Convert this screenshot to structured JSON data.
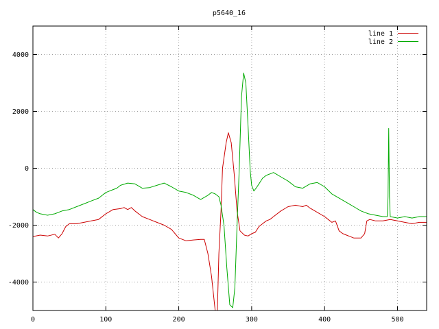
{
  "chart_data": {
    "type": "line",
    "title": "p5640_16",
    "xlabel": "",
    "ylabel": "",
    "xlim": [
      0,
      540
    ],
    "ylim": [
      -5000,
      5000
    ],
    "xticks": [
      0,
      100,
      200,
      300,
      400,
      500
    ],
    "yticks": [
      -4000,
      -2000,
      0,
      2000,
      4000
    ],
    "grid": true,
    "legend_position": "top-right",
    "series": [
      {
        "name": "line 1",
        "color": "#cc0000",
        "points": [
          [
            0,
            -2400
          ],
          [
            10,
            -2350
          ],
          [
            20,
            -2380
          ],
          [
            30,
            -2320
          ],
          [
            35,
            -2450
          ],
          [
            40,
            -2300
          ],
          [
            45,
            -2050
          ],
          [
            50,
            -1950
          ],
          [
            60,
            -1950
          ],
          [
            70,
            -1900
          ],
          [
            80,
            -1850
          ],
          [
            90,
            -1800
          ],
          [
            100,
            -1600
          ],
          [
            110,
            -1450
          ],
          [
            120,
            -1420
          ],
          [
            125,
            -1380
          ],
          [
            130,
            -1450
          ],
          [
            135,
            -1380
          ],
          [
            140,
            -1500
          ],
          [
            150,
            -1700
          ],
          [
            160,
            -1800
          ],
          [
            170,
            -1900
          ],
          [
            180,
            -2000
          ],
          [
            190,
            -2150
          ],
          [
            200,
            -2450
          ],
          [
            210,
            -2550
          ],
          [
            220,
            -2520
          ],
          [
            230,
            -2500
          ],
          [
            235,
            -2500
          ],
          [
            240,
            -3000
          ],
          [
            245,
            -3800
          ],
          [
            250,
            -5000
          ],
          [
            253,
            -5000
          ],
          [
            255,
            -3000
          ],
          [
            258,
            -1500
          ],
          [
            260,
            0
          ],
          [
            265,
            900
          ],
          [
            268,
            1250
          ],
          [
            272,
            900
          ],
          [
            276,
            -200
          ],
          [
            280,
            -1500
          ],
          [
            284,
            -2200
          ],
          [
            290,
            -2350
          ],
          [
            295,
            -2380
          ],
          [
            300,
            -2300
          ],
          [
            305,
            -2250
          ],
          [
            310,
            -2050
          ],
          [
            315,
            -1950
          ],
          [
            320,
            -1850
          ],
          [
            325,
            -1800
          ],
          [
            330,
            -1700
          ],
          [
            340,
            -1500
          ],
          [
            350,
            -1350
          ],
          [
            360,
            -1300
          ],
          [
            370,
            -1350
          ],
          [
            375,
            -1300
          ],
          [
            380,
            -1400
          ],
          [
            390,
            -1550
          ],
          [
            400,
            -1700
          ],
          [
            405,
            -1800
          ],
          [
            410,
            -1900
          ],
          [
            415,
            -1850
          ],
          [
            420,
            -2200
          ],
          [
            425,
            -2300
          ],
          [
            430,
            -2350
          ],
          [
            440,
            -2450
          ],
          [
            450,
            -2450
          ],
          [
            455,
            -2300
          ],
          [
            458,
            -1850
          ],
          [
            462,
            -1800
          ],
          [
            470,
            -1850
          ],
          [
            480,
            -1850
          ],
          [
            490,
            -1800
          ],
          [
            500,
            -1850
          ],
          [
            510,
            -1900
          ],
          [
            520,
            -1950
          ],
          [
            530,
            -1900
          ],
          [
            540,
            -1900
          ]
        ]
      },
      {
        "name": "line 2",
        "color": "#00aa00",
        "points": [
          [
            0,
            -1450
          ],
          [
            5,
            -1550
          ],
          [
            10,
            -1600
          ],
          [
            20,
            -1650
          ],
          [
            30,
            -1600
          ],
          [
            40,
            -1500
          ],
          [
            50,
            -1450
          ],
          [
            60,
            -1350
          ],
          [
            70,
            -1250
          ],
          [
            80,
            -1150
          ],
          [
            90,
            -1050
          ],
          [
            100,
            -850
          ],
          [
            110,
            -750
          ],
          [
            115,
            -700
          ],
          [
            120,
            -600
          ],
          [
            130,
            -520
          ],
          [
            140,
            -550
          ],
          [
            150,
            -700
          ],
          [
            160,
            -680
          ],
          [
            170,
            -600
          ],
          [
            180,
            -520
          ],
          [
            190,
            -650
          ],
          [
            200,
            -800
          ],
          [
            210,
            -850
          ],
          [
            220,
            -950
          ],
          [
            230,
            -1100
          ],
          [
            240,
            -950
          ],
          [
            245,
            -850
          ],
          [
            250,
            -900
          ],
          [
            255,
            -1000
          ],
          [
            258,
            -1300
          ],
          [
            262,
            -2000
          ],
          [
            266,
            -3500
          ],
          [
            270,
            -4800
          ],
          [
            274,
            -4900
          ],
          [
            277,
            -4200
          ],
          [
            280,
            -2000
          ],
          [
            283,
            0
          ],
          [
            286,
            2500
          ],
          [
            289,
            3350
          ],
          [
            292,
            3000
          ],
          [
            295,
            1500
          ],
          [
            298,
            -100
          ],
          [
            300,
            -600
          ],
          [
            303,
            -800
          ],
          [
            306,
            -700
          ],
          [
            310,
            -550
          ],
          [
            315,
            -350
          ],
          [
            320,
            -250
          ],
          [
            330,
            -150
          ],
          [
            340,
            -300
          ],
          [
            350,
            -450
          ],
          [
            360,
            -650
          ],
          [
            370,
            -700
          ],
          [
            380,
            -550
          ],
          [
            390,
            -500
          ],
          [
            400,
            -650
          ],
          [
            410,
            -900
          ],
          [
            420,
            -1050
          ],
          [
            430,
            -1200
          ],
          [
            440,
            -1350
          ],
          [
            450,
            -1500
          ],
          [
            460,
            -1600
          ],
          [
            470,
            -1650
          ],
          [
            480,
            -1700
          ],
          [
            486,
            -1700
          ],
          [
            487,
            -1000
          ],
          [
            488,
            1400
          ],
          [
            489,
            -1000
          ],
          [
            490,
            -1700
          ],
          [
            500,
            -1750
          ],
          [
            510,
            -1700
          ],
          [
            520,
            -1750
          ],
          [
            530,
            -1700
          ],
          [
            540,
            -1700
          ]
        ]
      }
    ]
  }
}
